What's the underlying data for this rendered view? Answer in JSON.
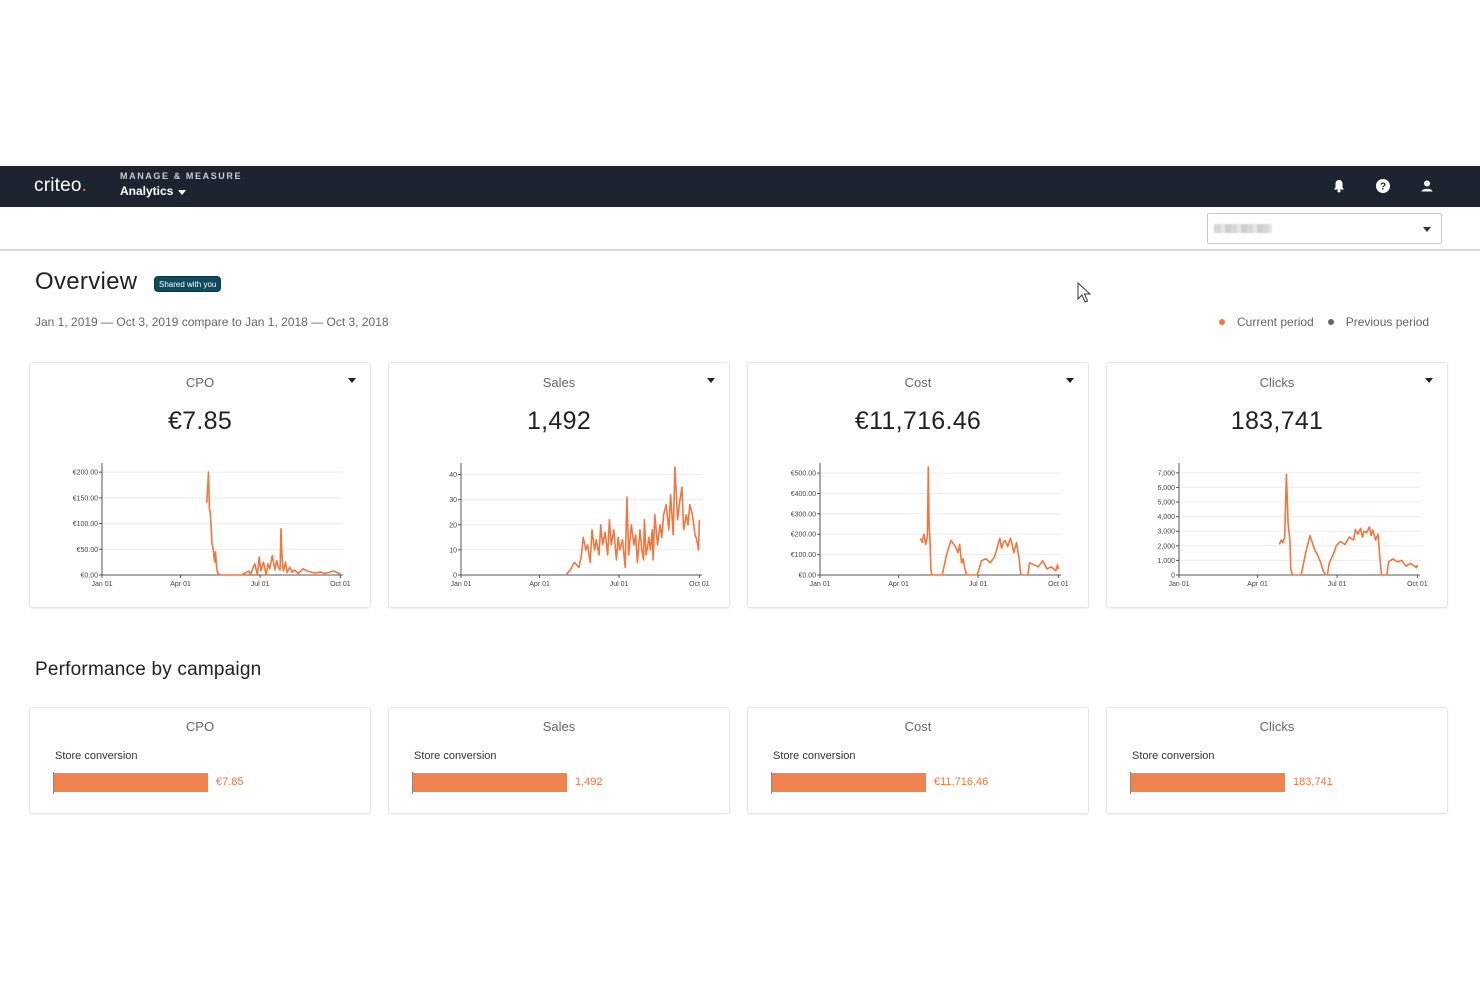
{
  "nav": {
    "logo": "criteo",
    "subtitle": "MANAGE & MEASURE",
    "menu_label": "Analytics",
    "icons": [
      "bell-icon",
      "help-icon",
      "user-icon"
    ]
  },
  "overview": {
    "title": "Overview",
    "badge": "Shared with you",
    "date_range": "Jan 1, 2019 — Oct 3, 2019 compare to Jan 1, 2018 — Oct 3, 2018",
    "legend": [
      {
        "label": "Current period",
        "color": "#f0773f"
      },
      {
        "label": "Previous period",
        "color": "#666666"
      }
    ]
  },
  "kpi_cards": [
    {
      "metric": "CPO",
      "value": "€7.85"
    },
    {
      "metric": "Sales",
      "value": "1,492"
    },
    {
      "metric": "Cost",
      "value": "€11,716.46"
    },
    {
      "metric": "Clicks",
      "value": "183,741"
    }
  ],
  "chart_data": [
    {
      "type": "line",
      "title": "CPO",
      "x_ticks": [
        "Jan 01",
        "Apr 01",
        "Jul 01",
        "Oct 01"
      ],
      "y_ticks": [
        "€0.00",
        "€50.00",
        "€100.00",
        "€150.00",
        "€200.00"
      ],
      "ylim": [
        0,
        210
      ],
      "series": [
        {
          "color": "#f0773f",
          "x": [
            120,
            122,
            123,
            124,
            125,
            126,
            127,
            128,
            129,
            130,
            131,
            132,
            135,
            138,
            140,
            145,
            150,
            155,
            160,
            165,
            168,
            170,
            172,
            175,
            178,
            180,
            182,
            185,
            188,
            190,
            192,
            195,
            198,
            200,
            202,
            204,
            205,
            206,
            207,
            208,
            210,
            212,
            215,
            218,
            220,
            225,
            230,
            235,
            240,
            245,
            250,
            255,
            260,
            265,
            270,
            273
          ],
          "y": [
            140,
            200,
            130,
            120,
            95,
            60,
            55,
            40,
            25,
            45,
            20,
            5,
            0,
            0,
            0,
            0,
            0,
            0,
            0,
            5,
            8,
            0,
            10,
            22,
            0,
            35,
            8,
            25,
            0,
            22,
            12,
            38,
            10,
            28,
            15,
            10,
            90,
            40,
            15,
            8,
            25,
            5,
            15,
            5,
            10,
            3,
            12,
            8,
            5,
            4,
            6,
            3,
            5,
            8,
            4,
            2
          ]
        }
      ],
      "grid": true
    },
    {
      "type": "line",
      "title": "Sales",
      "x_ticks": [
        "Jan 01",
        "Apr 01",
        "Jul 01",
        "Oct 01"
      ],
      "y_ticks": [
        "0",
        "10",
        "20",
        "30",
        "40"
      ],
      "ylim": [
        0,
        43
      ],
      "series": [
        {
          "color": "#f0773f",
          "x": [
            120,
            125,
            130,
            135,
            138,
            140,
            143,
            145,
            148,
            150,
            153,
            155,
            158,
            160,
            162,
            165,
            168,
            170,
            172,
            175,
            178,
            180,
            182,
            185,
            188,
            190,
            192,
            195,
            198,
            200,
            202,
            205,
            207,
            209,
            210,
            212,
            214,
            215,
            217,
            219,
            220,
            222,
            225,
            228,
            230,
            232,
            235,
            238,
            240,
            243,
            245,
            248,
            250,
            253,
            255,
            258,
            260,
            262,
            265,
            268,
            270,
            272,
            273
          ],
          "y": [
            0,
            2,
            5,
            3,
            8,
            15,
            10,
            12,
            5,
            18,
            10,
            14,
            8,
            20,
            12,
            17,
            8,
            22,
            12,
            18,
            6,
            15,
            10,
            14,
            3,
            31,
            8,
            20,
            12,
            16,
            5,
            18,
            10,
            6,
            22,
            8,
            12,
            15,
            10,
            18,
            6,
            24,
            12,
            20,
            15,
            24,
            28,
            18,
            32,
            16,
            43,
            22,
            28,
            35,
            18,
            24,
            20,
            28,
            24,
            16,
            14,
            10,
            22
          ]
        }
      ],
      "grid": true
    },
    {
      "type": "line",
      "title": "Cost",
      "x_ticks": [
        "Jan 01",
        "Apr 01",
        "Jul 01",
        "Oct 01"
      ],
      "y_ticks": [
        "€0.00",
        "€100.00",
        "€200.00",
        "€300.00",
        "€400.00",
        "€500.00"
      ],
      "ylim": [
        0,
        530
      ],
      "series": [
        {
          "color": "#f0773f",
          "x": [
            115,
            117,
            119,
            121,
            123,
            124,
            125,
            126,
            127,
            128,
            129,
            130,
            132,
            135,
            140,
            145,
            150,
            155,
            158,
            160,
            162,
            164,
            166,
            168,
            170,
            172,
            175,
            178,
            180,
            185,
            190,
            195,
            200,
            202,
            204,
            206,
            208,
            210,
            212,
            215,
            218,
            220,
            222,
            225,
            228,
            230,
            232,
            235,
            238,
            240,
            245,
            250,
            255,
            260,
            265,
            270,
            272,
            273
          ],
          "y": [
            180,
            160,
            200,
            150,
            190,
            530,
            250,
            170,
            30,
            0,
            0,
            0,
            0,
            0,
            0,
            100,
            170,
            140,
            110,
            150,
            60,
            80,
            30,
            0,
            0,
            0,
            0,
            0,
            0,
            70,
            80,
            60,
            90,
            120,
            150,
            180,
            130,
            160,
            170,
            140,
            180,
            150,
            110,
            160,
            80,
            0,
            0,
            0,
            0,
            60,
            50,
            40,
            70,
            30,
            40,
            20,
            50,
            30
          ]
        }
      ],
      "grid": true
    },
    {
      "type": "line",
      "title": "Clicks",
      "x_ticks": [
        "Jan 01",
        "Apr 01",
        "Jul 01",
        "Oct 01"
      ],
      "y_ticks": [
        "0",
        "1,000",
        "2,000",
        "3,000",
        "4,000",
        "5,000",
        "6,000",
        "7,000"
      ],
      "ylim": [
        0,
        7400
      ],
      "series": [
        {
          "color": "#f0773f",
          "x": [
            115,
            117,
            119,
            121,
            123,
            125,
            127,
            128,
            130,
            132,
            135,
            140,
            145,
            150,
            155,
            160,
            162,
            165,
            168,
            170,
            172,
            175,
            178,
            180,
            185,
            190,
            195,
            200,
            202,
            205,
            208,
            210,
            212,
            215,
            218,
            220,
            222,
            225,
            228,
            230,
            232,
            235,
            238,
            240,
            245,
            250,
            255,
            260,
            265,
            270,
            272,
            273
          ],
          "y": [
            2100,
            2400,
            2200,
            2600,
            6900,
            3500,
            2400,
            400,
            0,
            0,
            0,
            0,
            1500,
            2700,
            1800,
            1200,
            900,
            300,
            0,
            0,
            800,
            1200,
            1600,
            2000,
            2300,
            2100,
            2600,
            2400,
            3100,
            2800,
            3200,
            2600,
            3000,
            2900,
            3300,
            2700,
            3100,
            2400,
            2800,
            1200,
            0,
            0,
            0,
            900,
            1100,
            900,
            1000,
            600,
            800,
            600,
            500,
            700
          ]
        }
      ],
      "grid": true
    }
  ],
  "performance": {
    "title": "Performance by campaign",
    "cards": [
      {
        "metric": "CPO",
        "campaign": "Store conversion",
        "value": "€7.85",
        "share": 1.0
      },
      {
        "metric": "Sales",
        "campaign": "Store conversion",
        "value": "1,492",
        "share": 1.0
      },
      {
        "metric": "Cost",
        "campaign": "Store conversion",
        "value": "€11,716.46",
        "share": 1.0
      },
      {
        "metric": "Clicks",
        "campaign": "Store conversion",
        "value": "183,741",
        "share": 1.0
      }
    ]
  }
}
